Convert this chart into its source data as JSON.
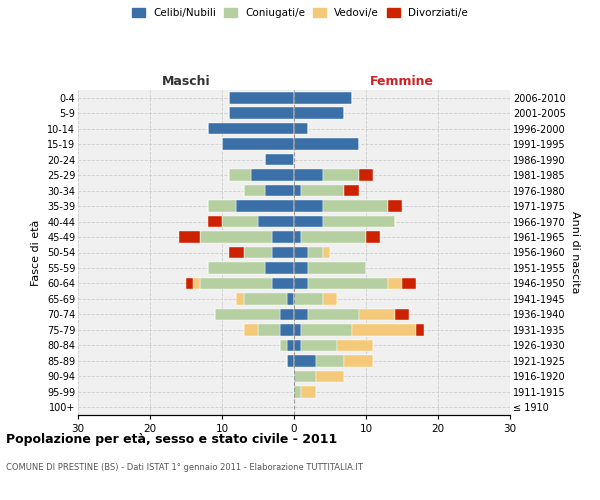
{
  "age_groups": [
    "100+",
    "95-99",
    "90-94",
    "85-89",
    "80-84",
    "75-79",
    "70-74",
    "65-69",
    "60-64",
    "55-59",
    "50-54",
    "45-49",
    "40-44",
    "35-39",
    "30-34",
    "25-29",
    "20-24",
    "15-19",
    "10-14",
    "5-9",
    "0-4"
  ],
  "birth_years": [
    "≤ 1910",
    "1911-1915",
    "1916-1920",
    "1921-1925",
    "1926-1930",
    "1931-1935",
    "1936-1940",
    "1941-1945",
    "1946-1950",
    "1951-1955",
    "1956-1960",
    "1961-1965",
    "1966-1970",
    "1971-1975",
    "1976-1980",
    "1981-1985",
    "1986-1990",
    "1991-1995",
    "1996-2000",
    "2001-2005",
    "2006-2010"
  ],
  "colors": {
    "celibe": "#3a6fa8",
    "coniugato": "#b5cfa0",
    "vedovo": "#f5c97a",
    "divorziato": "#cc2200"
  },
  "maschi": {
    "celibe": [
      0,
      0,
      0,
      1,
      1,
      2,
      2,
      1,
      3,
      4,
      3,
      3,
      5,
      8,
      4,
      6,
      4,
      10,
      12,
      9,
      9
    ],
    "coniugato": [
      0,
      0,
      0,
      0,
      1,
      3,
      9,
      6,
      10,
      8,
      4,
      10,
      5,
      4,
      3,
      3,
      0,
      0,
      0,
      0,
      0
    ],
    "vedovo": [
      0,
      0,
      0,
      0,
      0,
      2,
      0,
      1,
      1,
      0,
      0,
      0,
      0,
      0,
      0,
      0,
      0,
      0,
      0,
      0,
      0
    ],
    "divorziato": [
      0,
      0,
      0,
      0,
      0,
      0,
      0,
      0,
      1,
      0,
      2,
      3,
      2,
      0,
      0,
      0,
      0,
      0,
      0,
      0,
      0
    ]
  },
  "femmine": {
    "nubile": [
      0,
      0,
      0,
      3,
      1,
      1,
      2,
      0,
      2,
      2,
      2,
      1,
      4,
      4,
      1,
      4,
      0,
      9,
      2,
      7,
      8
    ],
    "coniugata": [
      0,
      1,
      3,
      4,
      5,
      7,
      7,
      4,
      11,
      8,
      2,
      9,
      10,
      9,
      6,
      5,
      0,
      0,
      0,
      0,
      0
    ],
    "vedova": [
      0,
      2,
      4,
      4,
      5,
      9,
      5,
      2,
      2,
      0,
      1,
      0,
      0,
      0,
      0,
      0,
      0,
      0,
      0,
      0,
      0
    ],
    "divorziata": [
      0,
      0,
      0,
      0,
      0,
      1,
      2,
      0,
      2,
      0,
      0,
      2,
      0,
      2,
      2,
      2,
      0,
      0,
      0,
      0,
      0
    ]
  },
  "title": "Popolazione per età, sesso e stato civile - 2011",
  "subtitle": "COMUNE DI PRESTINE (BS) - Dati ISTAT 1° gennaio 2011 - Elaborazione TUTTITALIA.IT",
  "xlabel_left": "Maschi",
  "xlabel_right": "Femmine",
  "ylabel_left": "Fasce di età",
  "ylabel_right": "Anni di nascita",
  "xlim": 30,
  "legend_labels": [
    "Celibi/Nubili",
    "Coniugati/e",
    "Vedovi/e",
    "Divorziati/e"
  ],
  "background_color": "#f0f0f0"
}
